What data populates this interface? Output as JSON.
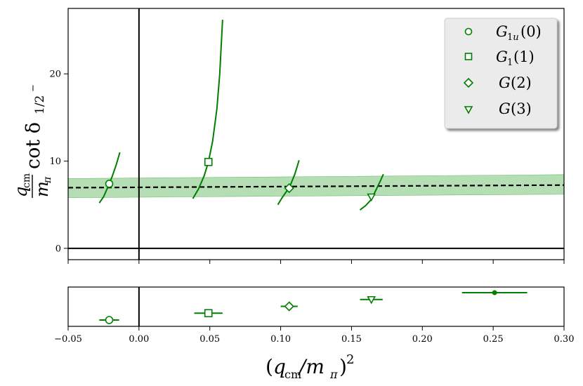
{
  "chart_data": [
    {
      "type": "line",
      "xlim": [
        -0.05,
        0.3
      ],
      "ylim": [
        -1.3,
        27.5
      ],
      "yticks": [
        0,
        10,
        20
      ],
      "ytick_labels": [
        "0",
        "10",
        "20"
      ],
      "ylabel": "q_cm/m_π cot δ_{1/2⁻}",
      "ylabel_parts": {
        "frac_num": "q",
        "frac_num_sub": "cm",
        "frac_den": "m",
        "frac_den_sub": "π",
        "mid": "cot δ",
        "tail": "1/2",
        "tail_sup": "−"
      },
      "grid": false,
      "reference_lines": {
        "x": 0,
        "y": 0
      },
      "fit": {
        "style": "dashed",
        "color": "#000000",
        "x": [
          -0.05,
          0.3
        ],
        "y": [
          6.95,
          7.25
        ],
        "band_lower": [
          5.8,
          6.2
        ],
        "band_upper": [
          8.0,
          8.45
        ],
        "band_color": "#2ca02c"
      },
      "series": [
        {
          "name": "G_{1u}(0)",
          "marker": "circle",
          "color": "#007f00",
          "point": {
            "x": -0.021,
            "y": 7.4
          },
          "curve": {
            "x": [
              -0.028,
              -0.025,
              -0.022,
              -0.019,
              -0.016,
              -0.0135
            ],
            "y": [
              5.2,
              5.9,
              7.0,
              8.2,
              9.6,
              11.0
            ]
          }
        },
        {
          "name": "G_1(1)",
          "marker": "square",
          "color": "#007f00",
          "point": {
            "x": 0.049,
            "y": 9.9
          },
          "curve": {
            "x": [
              0.038,
              0.042,
              0.046,
              0.049,
              0.052,
              0.055,
              0.057,
              0.059
            ],
            "y": [
              5.7,
              6.8,
              8.3,
              9.9,
              12.3,
              16.0,
              20.0,
              26.2
            ]
          }
        },
        {
          "name": "G(2)",
          "marker": "diamond",
          "color": "#007f00",
          "point": {
            "x": 0.106,
            "y": 6.9
          },
          "curve": {
            "x": [
              0.098,
              0.101,
              0.104,
              0.107,
              0.11,
              0.113
            ],
            "y": [
              5.0,
              5.8,
              6.5,
              7.3,
              8.5,
              10.1
            ]
          }
        },
        {
          "name": "G(3)",
          "marker": "triangle-down",
          "color": "#007f00",
          "point": {
            "x": 0.164,
            "y": 5.9
          },
          "curve": {
            "x": [
              0.156,
              0.16,
              0.164,
              0.167,
              0.17,
              0.1725
            ],
            "y": [
              4.4,
              4.9,
              5.6,
              6.6,
              7.6,
              8.5
            ]
          }
        }
      ],
      "legend": {
        "position": "upper-right",
        "entries": [
          "G_{1u}(0)",
          "G_1(1)",
          "G(2)",
          "G(3)"
        ]
      }
    },
    {
      "type": "scatter",
      "xlim": [
        -0.05,
        0.3
      ],
      "xticks": [
        -0.05,
        0.0,
        0.05,
        0.1,
        0.15,
        0.2,
        0.25,
        0.3
      ],
      "xtick_labels": [
        "−0.05",
        "0.00",
        "0.05",
        "0.10",
        "0.15",
        "0.20",
        "0.25",
        "0.30"
      ],
      "xlabel": "(q_cm/m_π)^2",
      "xlabel_parts": {
        "open": "(q",
        "sub1": "cm",
        "mid": "/m",
        "sub2": "π",
        "close": ")",
        "sup": "2"
      },
      "levels": 5,
      "reference_lines": {
        "x": 0
      },
      "points": [
        {
          "marker": "circle",
          "x": -0.021,
          "xerr": 0.007,
          "level": 0
        },
        {
          "marker": "square",
          "x": 0.049,
          "xerr": 0.01,
          "level": 1
        },
        {
          "marker": "diamond",
          "x": 0.106,
          "xerr": 0.006,
          "level": 2
        },
        {
          "marker": "triangle-down",
          "x": 0.164,
          "xerr": 0.008,
          "level": 3
        },
        {
          "marker": "dot",
          "x": 0.251,
          "xerr": 0.023,
          "level": 4
        }
      ],
      "color": "#007f00"
    }
  ]
}
